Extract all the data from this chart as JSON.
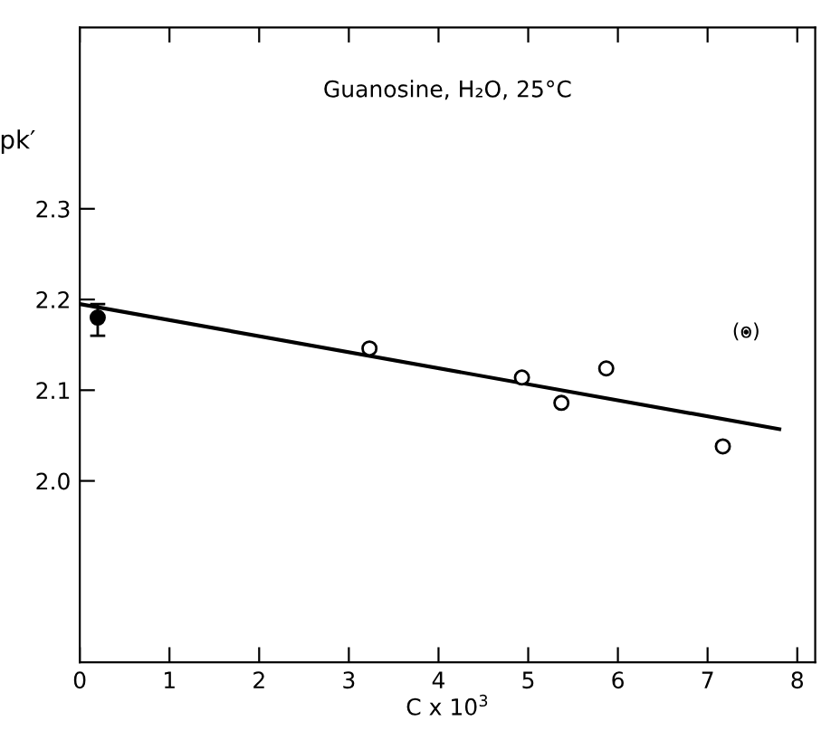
{
  "chart_data": {
    "type": "scatter",
    "title": "Guanosine, H₂O, 25°C",
    "xlabel": "C x 10$^{3}$",
    "ylabel": "pk′",
    "xlim": [
      0,
      8.2
    ],
    "ylim": [
      1.8,
      2.5
    ],
    "xticks": [
      0,
      1,
      2,
      3,
      4,
      5,
      6,
      7,
      8
    ],
    "yticks": [
      {
        "value": 2.0,
        "label": "2.0"
      },
      {
        "value": 2.1,
        "label": "2.1"
      },
      {
        "value": 2.2,
        "label": "2.2"
      },
      {
        "value": 2.3,
        "label": "2.3"
      }
    ],
    "series": [
      {
        "marker": "circle",
        "color": "#000000",
        "x": [
          0.2
        ],
        "values": [
          2.18
        ],
        "errors": [
          [
            2.16,
            2.195
          ]
        ]
      },
      {
        "marker": "circle",
        "color": "#000000",
        "x": [
          3.23,
          4.93,
          5.37,
          5.87,
          7.17
        ],
        "values": [
          2.146,
          2.114,
          2.086,
          2.124,
          2.038
        ]
      },
      {
        "marker": "none",
        "color": "#000000",
        "x": [
          7.43
        ],
        "values": [
          2.164
        ]
      },
      {
        "type": "line",
        "marker": "none",
        "color": "#000000",
        "x": [
          0,
          7.8
        ],
        "values": [
          2.195,
          2.057
        ]
      }
    ],
    "annotations": [
      {
        "text": "(o)",
        "x": 7.43,
        "y": 2.164
      }
    ],
    "grid": false,
    "legend": false
  }
}
